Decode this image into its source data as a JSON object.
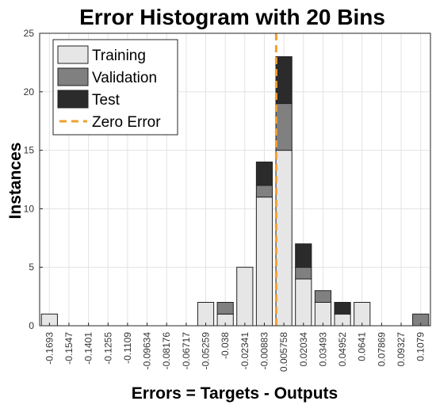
{
  "chart_data": {
    "type": "bar",
    "stacked": true,
    "title": "Error Histogram with 20 Bins",
    "xlabel": "Errors = Targets - Outputs",
    "ylabel": "Instances",
    "ylim": [
      0,
      25
    ],
    "yticks": [
      "0",
      "5",
      "10",
      "15",
      "20",
      "25"
    ],
    "grid": true,
    "legend_position": "top-left",
    "categories": [
      "-0.1693",
      "-0.1547",
      "-0.1401",
      "-0.1255",
      "-0.1109",
      "-0.09634",
      "-0.08176",
      "-0.06717",
      "-0.05259",
      "-0.038",
      "-0.02341",
      "-0.00883",
      "0.005758",
      "0.02034",
      "0.03493",
      "0.04952",
      "0.0641",
      "0.07869",
      "0.09327",
      "0.1079"
    ],
    "series": [
      {
        "name": "Training",
        "color": "#e6e6e6",
        "values": [
          1,
          0,
          0,
          0,
          0,
          0,
          0,
          0,
          2,
          1,
          5,
          11,
          15,
          4,
          2,
          1,
          2,
          0,
          0,
          0
        ]
      },
      {
        "name": "Validation",
        "color": "#808080",
        "values": [
          0,
          0,
          0,
          0,
          0,
          0,
          0,
          0,
          0,
          1,
          0,
          1,
          4,
          1,
          1,
          0,
          0,
          0,
          0,
          1
        ]
      },
      {
        "name": "Test",
        "color": "#2b2b2b",
        "values": [
          0,
          0,
          0,
          0,
          0,
          0,
          0,
          0,
          0,
          0,
          0,
          2,
          4,
          2,
          0,
          1,
          0,
          0,
          0,
          0
        ]
      }
    ],
    "zero_error": {
      "label": "Zero Error",
      "value": 0,
      "color": "#f0a030"
    }
  }
}
